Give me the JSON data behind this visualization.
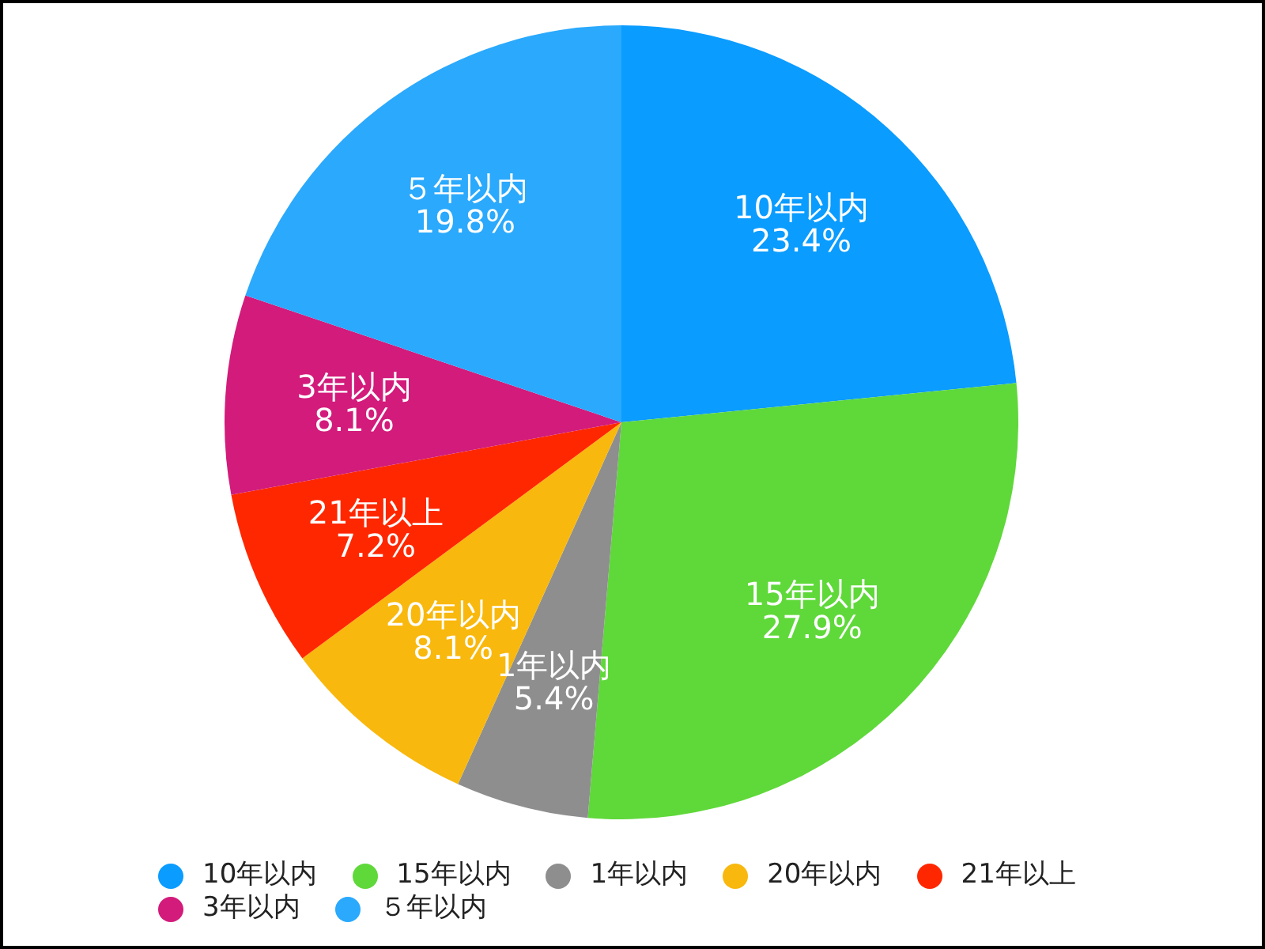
{
  "chart_data": {
    "type": "pie",
    "categories": [
      "10年以内",
      "15年以内",
      "1年以内",
      "20年以内",
      "21年以上",
      "3年以内",
      "５年以内"
    ],
    "values": [
      23.4,
      27.9,
      5.4,
      8.1,
      7.2,
      8.1,
      19.8
    ],
    "value_labels": [
      "23.4%",
      "27.9%",
      "5.4%",
      "8.1%",
      "7.2%",
      "8.1%",
      "19.8%"
    ],
    "colors": [
      "#0a9cff",
      "#5fd83a",
      "#8e8e8e",
      "#f8b80d",
      "#ff2700",
      "#d21b7b",
      "#2aa9fd"
    ],
    "legend": "bottom"
  }
}
